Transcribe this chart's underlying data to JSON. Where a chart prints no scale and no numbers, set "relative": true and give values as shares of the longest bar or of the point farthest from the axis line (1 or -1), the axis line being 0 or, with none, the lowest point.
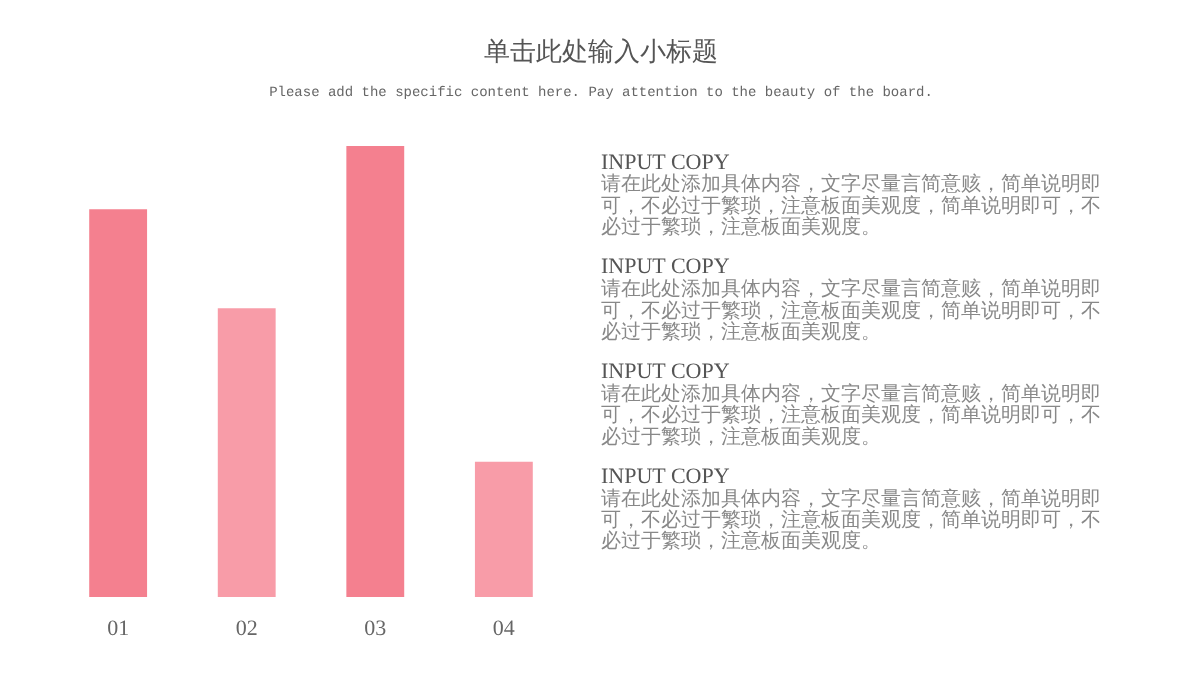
{
  "chart_data": {
    "type": "bar",
    "relative": true,
    "title": "单击此处输入小标题",
    "subtitle": "Please add the specific content here. Pay attention to the beauty of the board.",
    "categories": [
      "01",
      "02",
      "03",
      "04"
    ],
    "values": [
      0.86,
      0.64,
      1,
      0.3
    ],
    "colors": [
      "#f4808f",
      "#f89ca8",
      "#f4808f",
      "#f89ca8"
    ],
    "annotations": [
      "INPUT COPY",
      "请在此处添加具体内容，文字尽量言简意赅，简单说明即可，不必过于繁琐，注意板面美观度，简单说明即可，不必过于繁琐，注意板面美观度。",
      "INPUT COPY",
      "请在此处添加具体内容，文字尽量言简意赅，简单说明即可，不必过于繁琐，注意板面美观度，简单说明即可，不必过于繁琐，注意板面美观度。",
      "INPUT COPY",
      "请在此处添加具体内容，文字尽量言简意赅，简单说明即可，不必过于繁琐，注意板面美观度，简单说明即可，不必过于繁琐，注意板面美观度。",
      "INPUT COPY",
      "请在此处添加具体内容，文字尽量言简意赅，简单说明即可，不必过于繁琐，注意板面美观度，简单说明即可，不必过于繁琐，注意板面美观度。"
    ]
  }
}
